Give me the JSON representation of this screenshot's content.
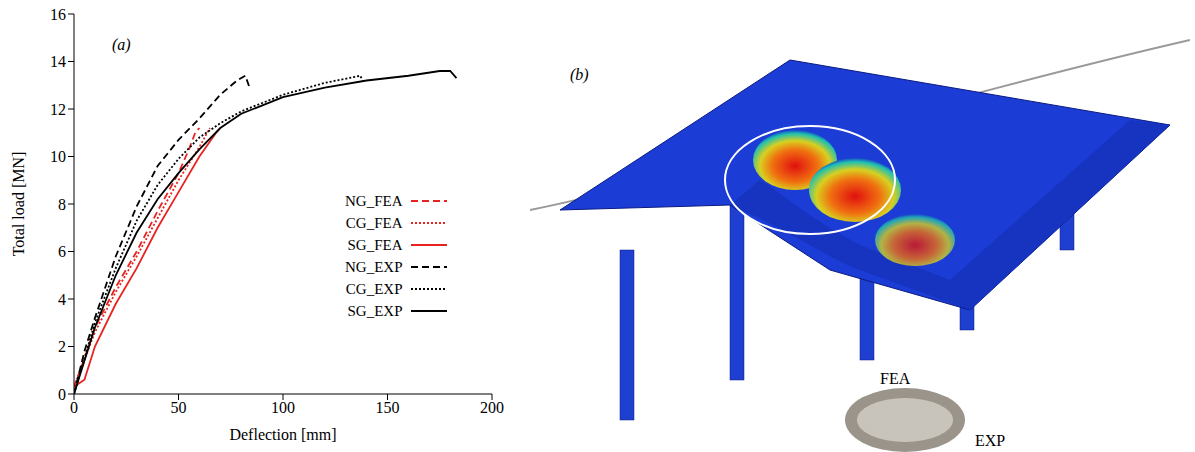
{
  "chart_data": {
    "type": "line",
    "title": "(a)",
    "x_label": "Deflection [mm]",
    "y_label": "Total load [MN]",
    "xlim": [
      0,
      200
    ],
    "xticks": [
      0,
      50,
      100,
      150,
      200
    ],
    "ylim": [
      0,
      16
    ],
    "yticks": [
      0,
      2,
      4,
      6,
      8,
      10,
      12,
      14,
      16
    ],
    "grid": false,
    "legend": "lower right",
    "series": [
      {
        "name": "NG_FEA",
        "color": "#e8231f",
        "line_style": "dashed",
        "x": [
          0,
          5,
          10,
          20,
          30,
          40,
          50,
          55,
          58,
          60
        ],
        "values": [
          0.3,
          1.5,
          2.8,
          4.5,
          6,
          7.7,
          9.3,
          10.3,
          11,
          11.2
        ]
      },
      {
        "name": "CG_FEA",
        "color": "#e8231f",
        "line_style": "dotted",
        "x": [
          0,
          10,
          20,
          30,
          40,
          50,
          60,
          65
        ],
        "values": [
          0.3,
          2.6,
          4.3,
          5.8,
          7.4,
          9,
          10.4,
          11.2
        ]
      },
      {
        "name": "SG_FEA",
        "color": "#e8231f",
        "line_style": "solid",
        "x": [
          0,
          5,
          10,
          20,
          30,
          40,
          50,
          60,
          68,
          70
        ],
        "values": [
          0.3,
          0.6,
          2,
          3.8,
          5.3,
          7,
          8.5,
          10,
          11,
          11.2
        ]
      },
      {
        "name": "NG_EXP",
        "color": "#000000",
        "line_style": "dashed",
        "x": [
          0,
          5,
          10,
          20,
          30,
          40,
          50,
          60,
          70,
          78,
          82,
          84
        ],
        "values": [
          0,
          1.8,
          3.2,
          5.8,
          7.9,
          9.6,
          10.7,
          11.6,
          12.6,
          13.2,
          13.4,
          12.9
        ]
      },
      {
        "name": "CG_EXP",
        "color": "#000000",
        "line_style": "dotted",
        "x": [
          0,
          10,
          20,
          30,
          40,
          50,
          60,
          70,
          80,
          100,
          120,
          137,
          138
        ],
        "values": [
          0,
          3,
          5.3,
          7.3,
          8.8,
          9.9,
          10.8,
          11.4,
          11.9,
          12.6,
          13.1,
          13.4,
          13.2
        ]
      },
      {
        "name": "SG_EXP",
        "color": "#000000",
        "line_style": "solid",
        "x": [
          0,
          10,
          20,
          30,
          40,
          50,
          60,
          70,
          80,
          100,
          120,
          140,
          160,
          175,
          180,
          183
        ],
        "values": [
          0,
          2.8,
          5,
          6.8,
          8.2,
          9.3,
          10.3,
          11.2,
          11.8,
          12.5,
          12.9,
          13.2,
          13.4,
          13.6,
          13.6,
          13.3
        ]
      }
    ]
  },
  "figure": {
    "panel_b": {
      "label": "(b)",
      "model_label": "FEA",
      "photo_label": "EXP"
    }
  }
}
